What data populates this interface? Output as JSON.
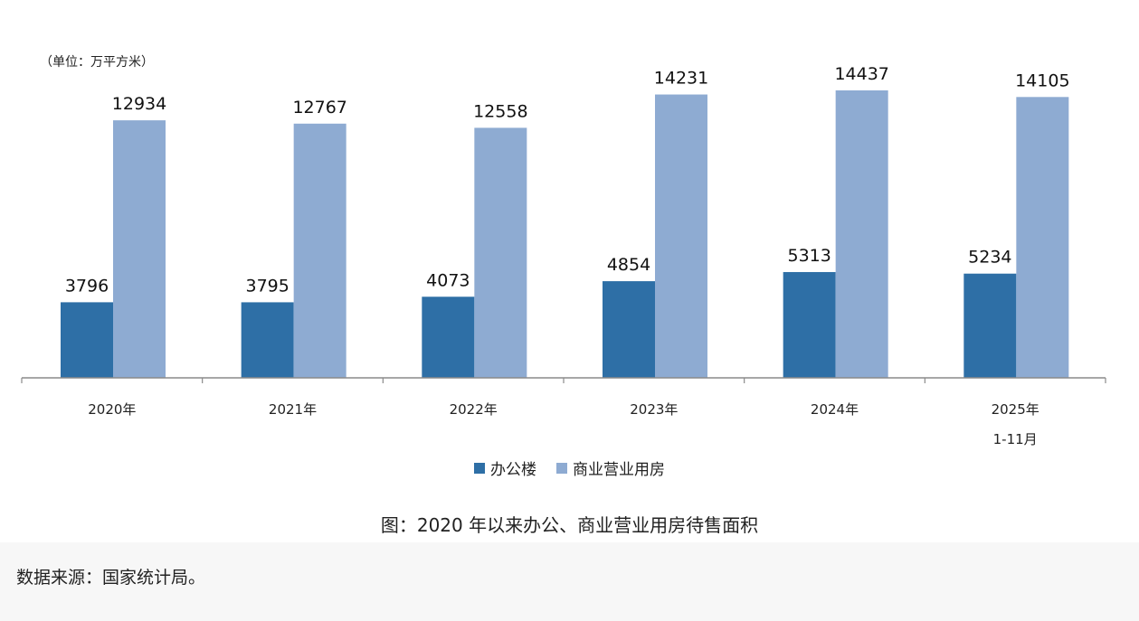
{
  "chart_data": {
    "type": "bar",
    "unit_label": "（单位：万平方米）",
    "categories": [
      [
        "2020年"
      ],
      [
        "2021年"
      ],
      [
        "2022年"
      ],
      [
        "2023年"
      ],
      [
        "2024年"
      ],
      [
        "2025年",
        "1-11月"
      ]
    ],
    "series": [
      {
        "name": "办公楼",
        "color": "#2e6fa6",
        "values": [
          3796,
          3795,
          4073,
          4854,
          5313,
          5234
        ]
      },
      {
        "name": "商业营业用房",
        "color": "#8eabd2",
        "values": [
          12934,
          12767,
          12558,
          14231,
          14437,
          14105
        ]
      }
    ],
    "ylim": [
      0,
      16000
    ],
    "grid": false,
    "legend_position": "bottom"
  },
  "caption": "图：2020 年以来办公、商业营业用房待售面积",
  "source": "数据来源：国家统计局。"
}
